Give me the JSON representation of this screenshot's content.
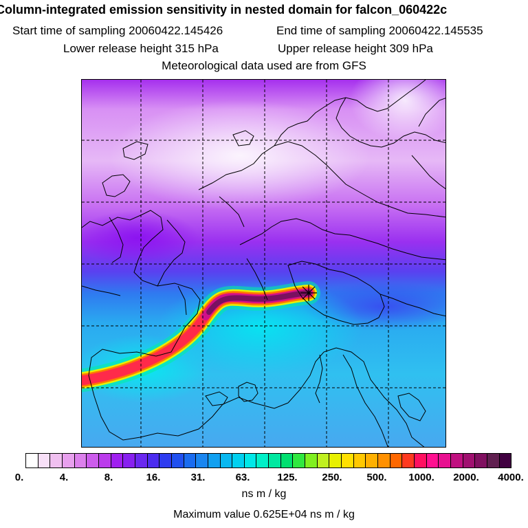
{
  "header": {
    "title": "Column-integrated emission sensitivity in nested domain for falcon_060422c",
    "start_time": "Start time of sampling 20060422.145426",
    "end_time": "End time of sampling 20060422.145535",
    "lower_height": "Lower release height  315 hPa",
    "upper_height": "Upper release height  309 hPa",
    "met_source": "Meteorological data used are from GFS"
  },
  "colorbar": {
    "tick_labels": [
      "0.",
      "4.",
      "8.",
      "16.",
      "31.",
      "63.",
      "125.",
      "250.",
      "500.",
      "1000.",
      "2000.",
      "4000."
    ],
    "units": "ns m / kg",
    "colors": [
      "#ffffff",
      "#f8e0f8",
      "#f0c0f0",
      "#e8a0ee",
      "#dc80ec",
      "#cc5cec",
      "#bb3cec",
      "#a020f0",
      "#8820f0",
      "#6a28f0",
      "#4c2cf0",
      "#2e3cf0",
      "#2050f0",
      "#1a6cf0",
      "#1a86f0",
      "#12a0f0",
      "#08b8f0",
      "#00d0f0",
      "#00e8e8",
      "#00f0c8",
      "#00e8a0",
      "#00e070",
      "#30e840",
      "#80f020",
      "#c0f020",
      "#e8f000",
      "#ffe000",
      "#ffc800",
      "#ffb000",
      "#ff9000",
      "#ff6800",
      "#ff3a20",
      "#ff1060",
      "#ff1090",
      "#e81090",
      "#c01080",
      "#a01070",
      "#801060",
      "#602050",
      "#400040"
    ]
  },
  "map": {
    "release_marker": "star",
    "color_ocean_low": "#4aa8f0",
    "color_north": "#b040f0",
    "color_max": "#600040"
  },
  "max_value": "Maximum value  0.625E+04 ns m / kg"
}
